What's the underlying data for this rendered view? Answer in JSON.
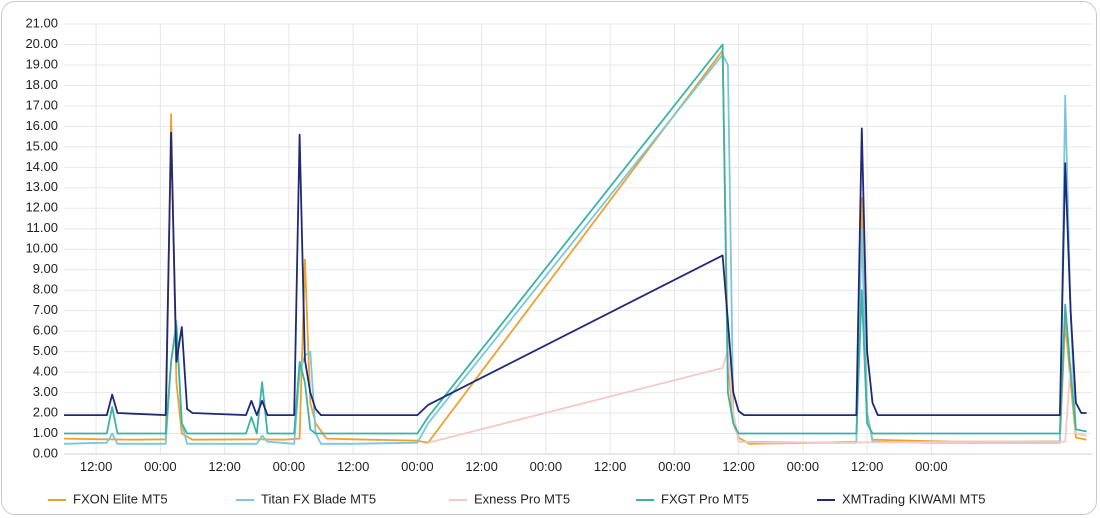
{
  "chart_data": {
    "type": "line",
    "title": "",
    "xlabel": "",
    "ylabel": "",
    "ylim": [
      0,
      21
    ],
    "y_ticks": [
      "0.00",
      "1.00",
      "2.00",
      "3.00",
      "4.00",
      "5.00",
      "6.00",
      "7.00",
      "8.00",
      "9.00",
      "10.00",
      "11.00",
      "12.00",
      "13.00",
      "14.00",
      "15.00",
      "16.00",
      "17.00",
      "18.00",
      "19.00",
      "20.00",
      "21.00"
    ],
    "x_ticks": [
      "12:00",
      "00:00",
      "12:00",
      "00:00",
      "12:00",
      "00:00",
      "12:00",
      "00:00",
      "12:00",
      "00:00",
      "12:00",
      "00:00",
      "12:00",
      "00:00"
    ],
    "x_range_hours": [
      -6,
      186
    ],
    "x_tick_hours": [
      0,
      12,
      24,
      36,
      48,
      60,
      72,
      84,
      96,
      108,
      120,
      132,
      144,
      156
    ],
    "grid": true,
    "legend_position": "bottom",
    "series": [
      {
        "name": "FXON Elite MT5",
        "color": "#f0a030",
        "points": [
          [
            -6,
            0.75
          ],
          [
            2,
            0.72
          ],
          [
            7,
            0.7
          ],
          [
            13,
            0.72
          ],
          [
            14,
            16.6
          ],
          [
            15,
            3.5
          ],
          [
            16,
            1.0
          ],
          [
            18,
            0.7
          ],
          [
            30,
            0.72
          ],
          [
            35,
            0.7
          ],
          [
            38,
            0.75
          ],
          [
            39,
            9.5
          ],
          [
            40,
            2.5
          ],
          [
            41,
            1.5
          ],
          [
            43,
            0.75
          ],
          [
            48,
            0.72
          ],
          [
            60,
            0.65
          ],
          [
            62,
            0.55
          ],
          [
            117,
            19.7
          ],
          [
            118,
            4.5
          ],
          [
            119,
            1.5
          ],
          [
            120,
            0.8
          ],
          [
            122,
            0.5
          ],
          [
            135,
            0.55
          ],
          [
            142,
            0.6
          ],
          [
            143,
            12.5
          ],
          [
            144,
            2.0
          ],
          [
            145,
            0.7
          ],
          [
            160,
            0.6
          ],
          [
            172,
            0.6
          ],
          [
            180,
            0.62
          ],
          [
            181,
            6.5
          ],
          [
            182,
            3.5
          ],
          [
            183,
            0.8
          ],
          [
            185,
            0.7
          ]
        ]
      },
      {
        "name": "Titan FX Blade MT5",
        "color": "#7cc6de",
        "points": [
          [
            -6,
            0.5
          ],
          [
            2,
            0.55
          ],
          [
            3,
            1.0
          ],
          [
            4,
            0.5
          ],
          [
            13,
            0.5
          ],
          [
            14,
            4.5
          ],
          [
            15,
            6.5
          ],
          [
            16,
            1.5
          ],
          [
            17,
            0.5
          ],
          [
            30,
            0.5
          ],
          [
            31,
            0.9
          ],
          [
            32,
            0.6
          ],
          [
            37,
            0.5
          ],
          [
            38,
            4.0
          ],
          [
            39,
            4.8
          ],
          [
            40,
            5.0
          ],
          [
            41,
            1.0
          ],
          [
            42,
            0.5
          ],
          [
            48,
            0.5
          ],
          [
            60,
            0.55
          ],
          [
            62,
            1.5
          ],
          [
            117,
            19.5
          ],
          [
            118,
            19.0
          ],
          [
            119,
            2.0
          ],
          [
            120,
            0.6
          ],
          [
            135,
            0.55
          ],
          [
            142,
            0.55
          ],
          [
            143,
            11.0
          ],
          [
            144,
            2.0
          ],
          [
            145,
            0.6
          ],
          [
            156,
            0.55
          ],
          [
            166,
            0.55
          ],
          [
            180,
            0.55
          ],
          [
            181,
            17.5
          ],
          [
            182,
            7.0
          ],
          [
            183,
            1.0
          ],
          [
            185,
            0.9
          ]
        ]
      },
      {
        "name": "Exness Pro MT5",
        "color": "#f7c9c6",
        "points": [
          [
            62,
            0.55
          ],
          [
            117,
            4.2
          ],
          [
            118,
            5.1
          ],
          [
            119,
            2.0
          ],
          [
            120,
            0.6
          ],
          [
            125,
            0.55
          ],
          [
            181,
            0.6
          ],
          [
            182,
            4.4
          ],
          [
            183,
            1.0
          ],
          [
            185,
            0.9
          ]
        ]
      },
      {
        "name": "FXGT Pro MT5",
        "color": "#3bb3a4",
        "points": [
          [
            -6,
            1.0
          ],
          [
            2,
            1.0
          ],
          [
            3,
            2.3
          ],
          [
            4,
            1.0
          ],
          [
            13,
            1.0
          ],
          [
            14,
            4.5
          ],
          [
            15,
            6.3
          ],
          [
            16,
            1.5
          ],
          [
            17,
            1.0
          ],
          [
            28,
            1.0
          ],
          [
            29,
            1.8
          ],
          [
            30,
            1.0
          ],
          [
            31,
            3.5
          ],
          [
            32,
            1.0
          ],
          [
            37,
            1.0
          ],
          [
            38,
            4.5
          ],
          [
            39,
            3.5
          ],
          [
            40,
            1.2
          ],
          [
            41,
            1.0
          ],
          [
            60,
            1.0
          ],
          [
            62,
            1.8
          ],
          [
            117,
            20.0
          ],
          [
            118,
            3.0
          ],
          [
            119,
            1.5
          ],
          [
            120,
            1.0
          ],
          [
            142,
            1.0
          ],
          [
            143,
            8.0
          ],
          [
            144,
            1.5
          ],
          [
            145,
            1.0
          ],
          [
            180,
            1.0
          ],
          [
            181,
            7.3
          ],
          [
            182,
            4.0
          ],
          [
            183,
            1.2
          ],
          [
            185,
            1.1
          ]
        ]
      },
      {
        "name": "XMTrading KIWAMI MT5",
        "color": "#1e2a78",
        "points": [
          [
            -6,
            1.9
          ],
          [
            2,
            1.9
          ],
          [
            3,
            2.9
          ],
          [
            4,
            2.0
          ],
          [
            13,
            1.9
          ],
          [
            14,
            15.7
          ],
          [
            15,
            4.5
          ],
          [
            16,
            6.2
          ],
          [
            17,
            2.2
          ],
          [
            18,
            2.0
          ],
          [
            28,
            1.9
          ],
          [
            29,
            2.6
          ],
          [
            30,
            1.9
          ],
          [
            31,
            2.6
          ],
          [
            32,
            1.9
          ],
          [
            37,
            1.9
          ],
          [
            38,
            15.6
          ],
          [
            39,
            4.6
          ],
          [
            40,
            3.0
          ],
          [
            41,
            2.2
          ],
          [
            42,
            1.9
          ],
          [
            60,
            1.9
          ],
          [
            62,
            2.4
          ],
          [
            117,
            9.7
          ],
          [
            118,
            6.5
          ],
          [
            119,
            3.0
          ],
          [
            120,
            2.1
          ],
          [
            121,
            1.9
          ],
          [
            142,
            1.9
          ],
          [
            143,
            15.9
          ],
          [
            144,
            5.0
          ],
          [
            145,
            2.5
          ],
          [
            146,
            1.9
          ],
          [
            180,
            1.9
          ],
          [
            181,
            14.2
          ],
          [
            182,
            7.0
          ],
          [
            183,
            2.5
          ],
          [
            184,
            2.0
          ],
          [
            185,
            2.0
          ]
        ]
      }
    ]
  }
}
